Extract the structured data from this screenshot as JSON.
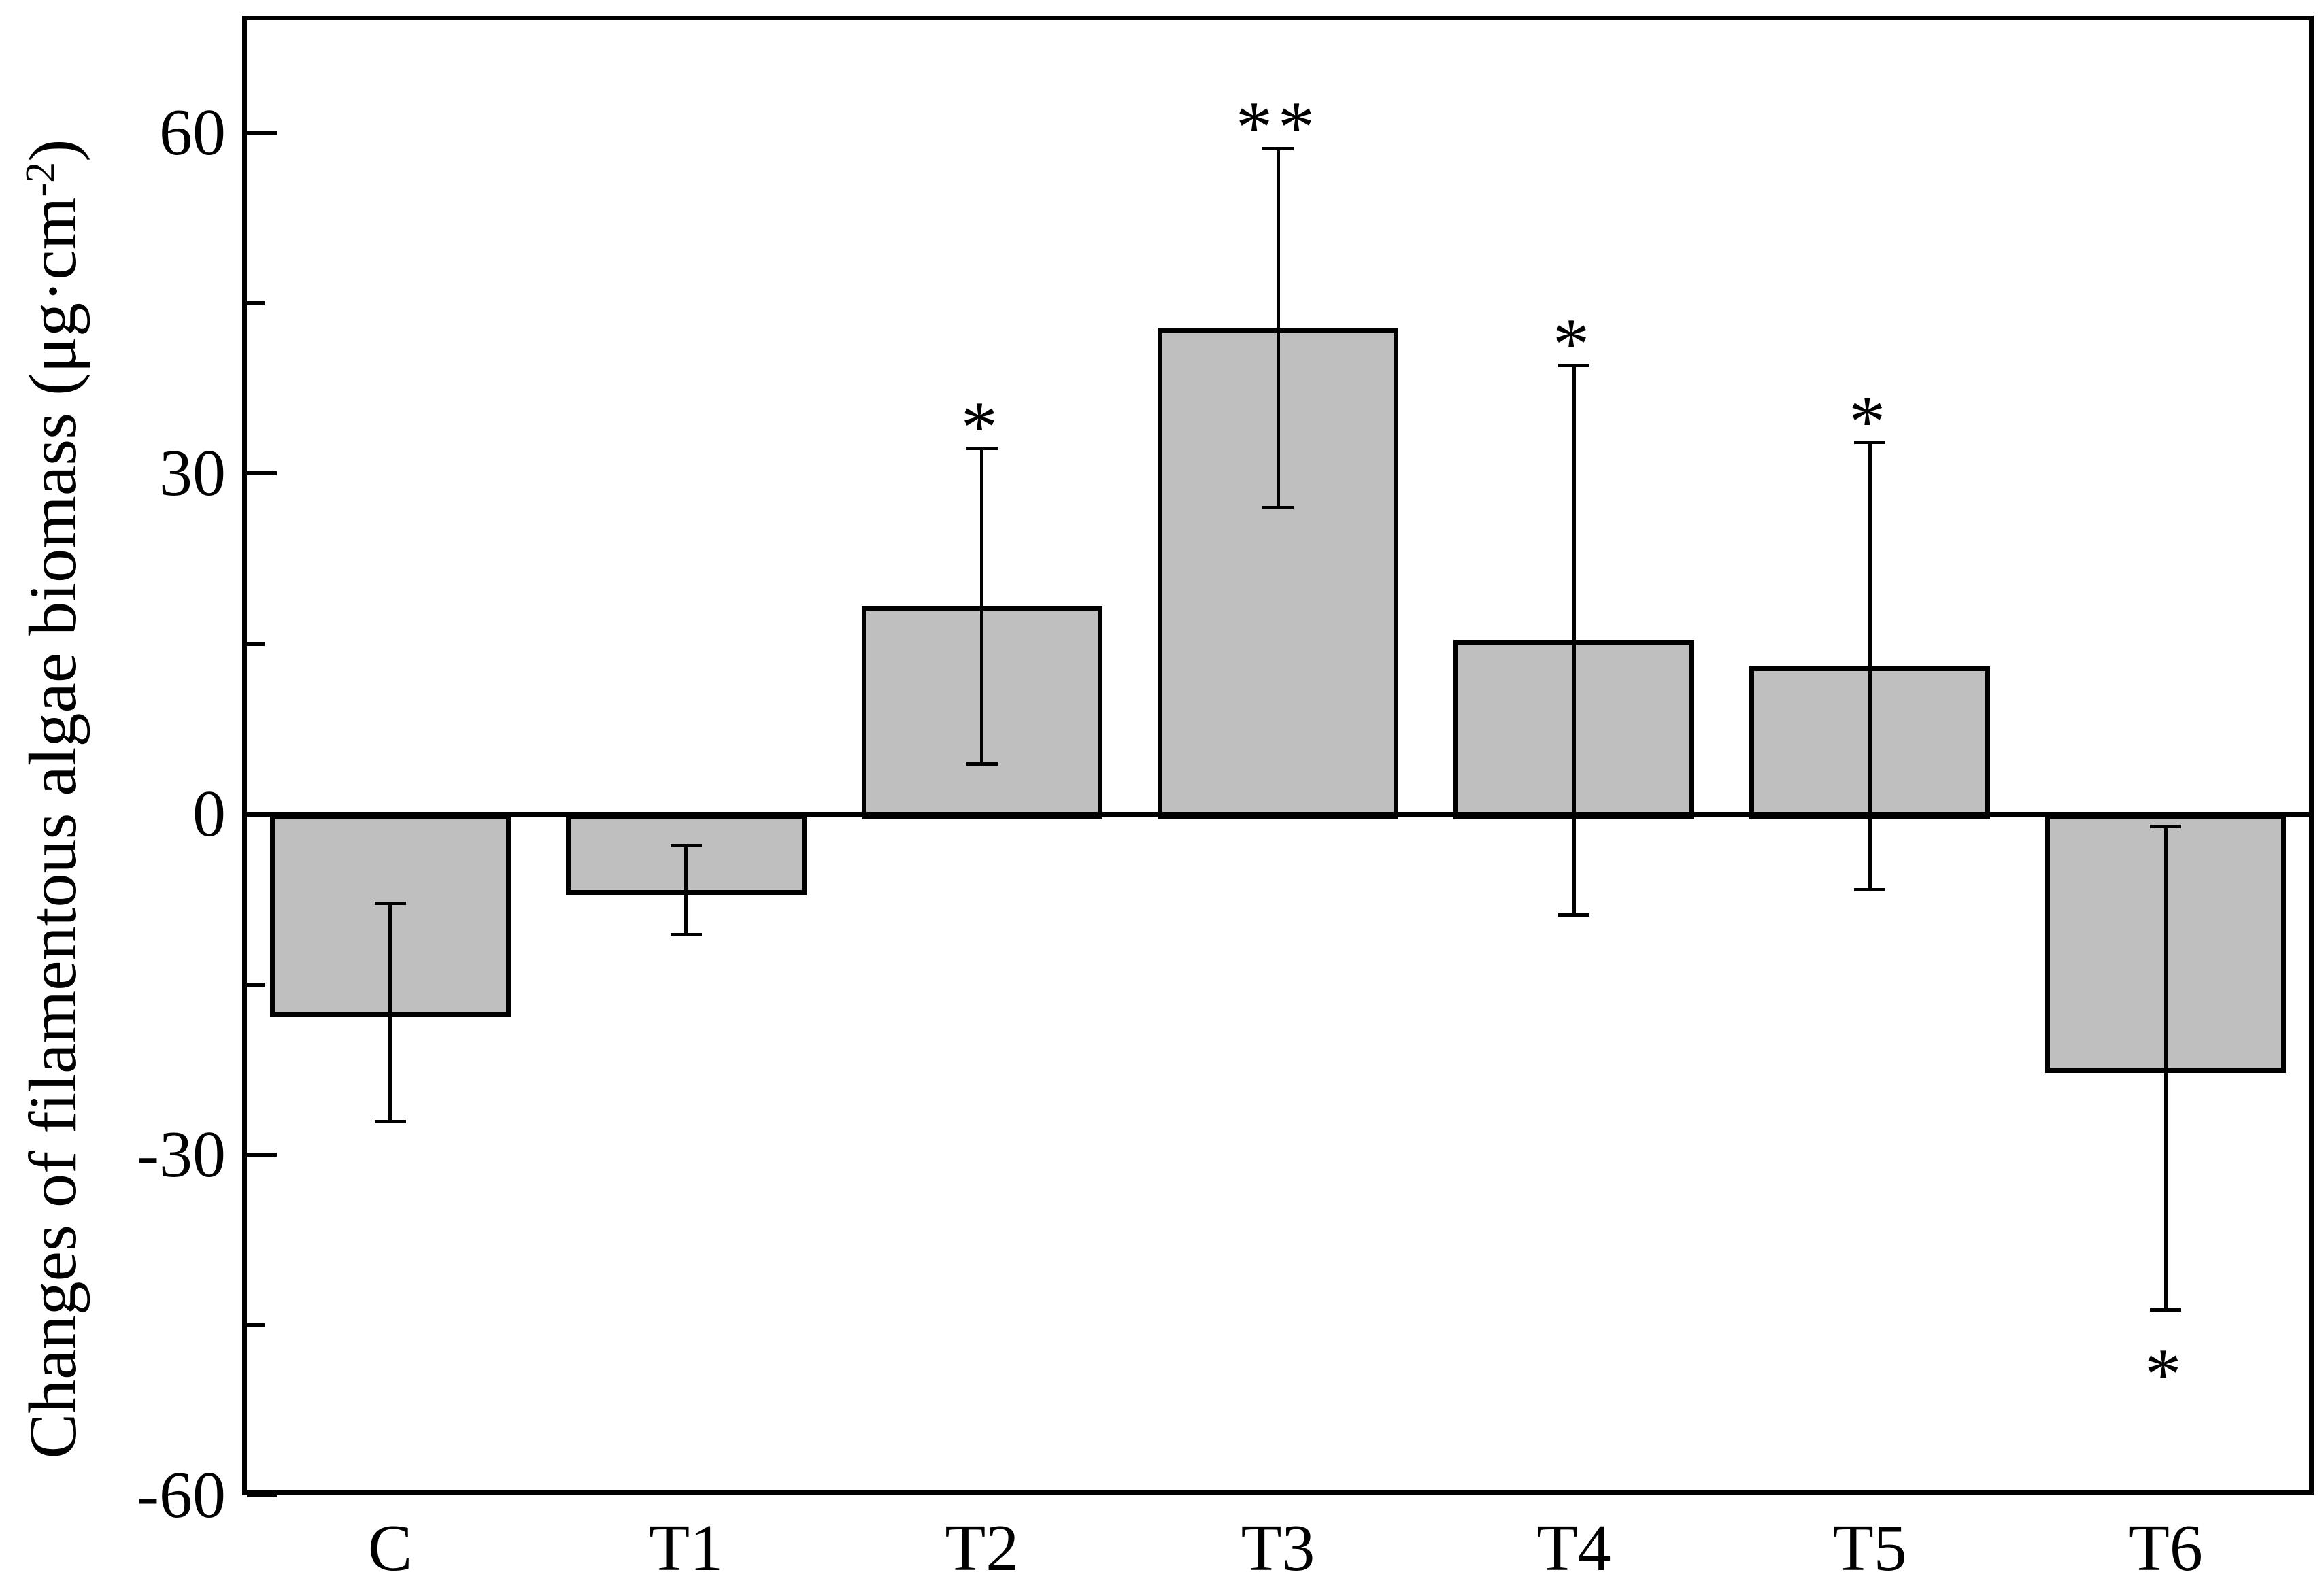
{
  "chart_data": {
    "type": "bar",
    "title": "",
    "xlabel": "",
    "ylabel_pre": "Changes of filamentous algae biomass (μg·cm",
    "ylabel_sup": "-2",
    "ylabel_post": ")",
    "categories": [
      "C",
      "T1",
      "T2",
      "T3",
      "T4",
      "T5",
      "T6"
    ],
    "values": [
      -17.5,
      -6.7,
      18.3,
      42.8,
      15.3,
      13.0,
      -22.4
    ],
    "errors": [
      9.6,
      3.9,
      13.9,
      15.8,
      24.2,
      19.7,
      21.3
    ],
    "significance": [
      "",
      "",
      "*",
      "**",
      "*",
      "*",
      "*"
    ],
    "sig_position": [
      "",
      "",
      "above",
      "above",
      "above",
      "above",
      "below"
    ],
    "ytick_values": [
      60,
      30,
      0,
      -30,
      -60
    ],
    "ytick_labels": [
      "60",
      "30",
      "0",
      "-30",
      "-60"
    ],
    "yticks_minor": [
      45,
      15,
      -15,
      -45
    ],
    "ylim": [
      -60,
      70.3
    ],
    "grid": "off",
    "legend": "none",
    "bar_color": "#bfbfbf",
    "axis_color": "#000000",
    "background_color": "#ffffff"
  }
}
